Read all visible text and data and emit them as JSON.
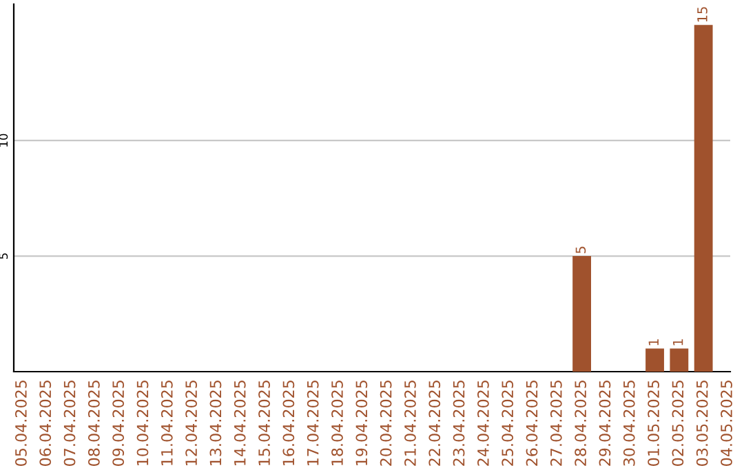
{
  "chart_data": {
    "type": "bar",
    "categories": [
      "05.04.2025",
      "06.04.2025",
      "07.04.2025",
      "08.04.2025",
      "09.04.2025",
      "10.04.2025",
      "11.04.2025",
      "12.04.2025",
      "13.04.2025",
      "14.04.2025",
      "15.04.2025",
      "16.04.2025",
      "17.04.2025",
      "18.04.2025",
      "19.04.2025",
      "20.04.2025",
      "21.04.2025",
      "22.04.2025",
      "23.04.2025",
      "24.04.2025",
      "25.04.2025",
      "26.04.2025",
      "27.04.2025",
      "28.04.2025",
      "29.04.2025",
      "30.04.2025",
      "01.05.2025",
      "02.05.2025",
      "03.05.2025",
      "04.05.2025"
    ],
    "values": [
      0,
      0,
      0,
      0,
      0,
      0,
      0,
      0,
      0,
      0,
      0,
      0,
      0,
      0,
      0,
      0,
      0,
      0,
      0,
      0,
      0,
      0,
      0,
      5,
      0,
      0,
      1,
      1,
      15,
      0
    ],
    "value_labels": [
      null,
      null,
      null,
      null,
      null,
      null,
      null,
      null,
      null,
      null,
      null,
      null,
      null,
      null,
      null,
      null,
      null,
      null,
      null,
      null,
      null,
      null,
      null,
      "5",
      null,
      null,
      "1",
      "1",
      "15",
      null
    ],
    "color": "#a0522d",
    "ylim": [
      0,
      15.9
    ],
    "yticks": [
      5,
      10
    ],
    "grid": "y"
  }
}
